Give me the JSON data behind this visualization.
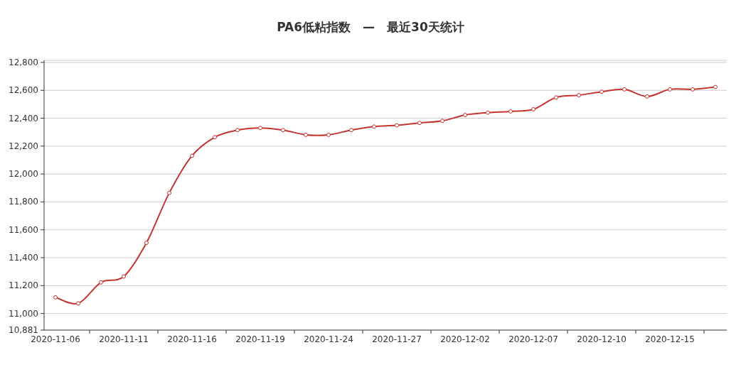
{
  "chart_data": {
    "type": "line",
    "title": "PA6低粘指数　—　最近30天统计",
    "categories": [
      "2020-11-06",
      null,
      null,
      "2020-11-11",
      null,
      null,
      "2020-11-16",
      null,
      null,
      "2020-11-19",
      null,
      null,
      "2020-11-24",
      null,
      null,
      "2020-11-27",
      null,
      null,
      "2020-12-02",
      null,
      null,
      "2020-12-07",
      null,
      null,
      "2020-12-10",
      null,
      null,
      "2020-12-15",
      null,
      null
    ],
    "values": [
      11116,
      11073,
      11223,
      11265,
      11507,
      11864,
      12131,
      12264,
      12315,
      12330,
      12315,
      12281,
      12281,
      12315,
      12340,
      12349,
      12366,
      12381,
      12423,
      12440,
      12449,
      12464,
      12549,
      12565,
      12590,
      12607,
      12556,
      12607,
      12607,
      12624
    ],
    "color": "#c23531",
    "marker": "circle",
    "grid": "y",
    "ylim": [
      10881,
      12815
    ],
    "yticks": [
      {
        "value": 10881,
        "label": "10,881"
      },
      {
        "value": 11000,
        "label": "11,000"
      },
      {
        "value": 11200,
        "label": "11,200"
      },
      {
        "value": 11400,
        "label": "11,400"
      },
      {
        "value": 11600,
        "label": "11,600"
      },
      {
        "value": 11800,
        "label": "11,800"
      },
      {
        "value": 12000,
        "label": "12,000"
      },
      {
        "value": 12200,
        "label": "12,200"
      },
      {
        "value": 12400,
        "label": "12,400"
      },
      {
        "value": 12600,
        "label": "12,600"
      },
      {
        "value": 12800,
        "label": "12,800"
      }
    ]
  }
}
